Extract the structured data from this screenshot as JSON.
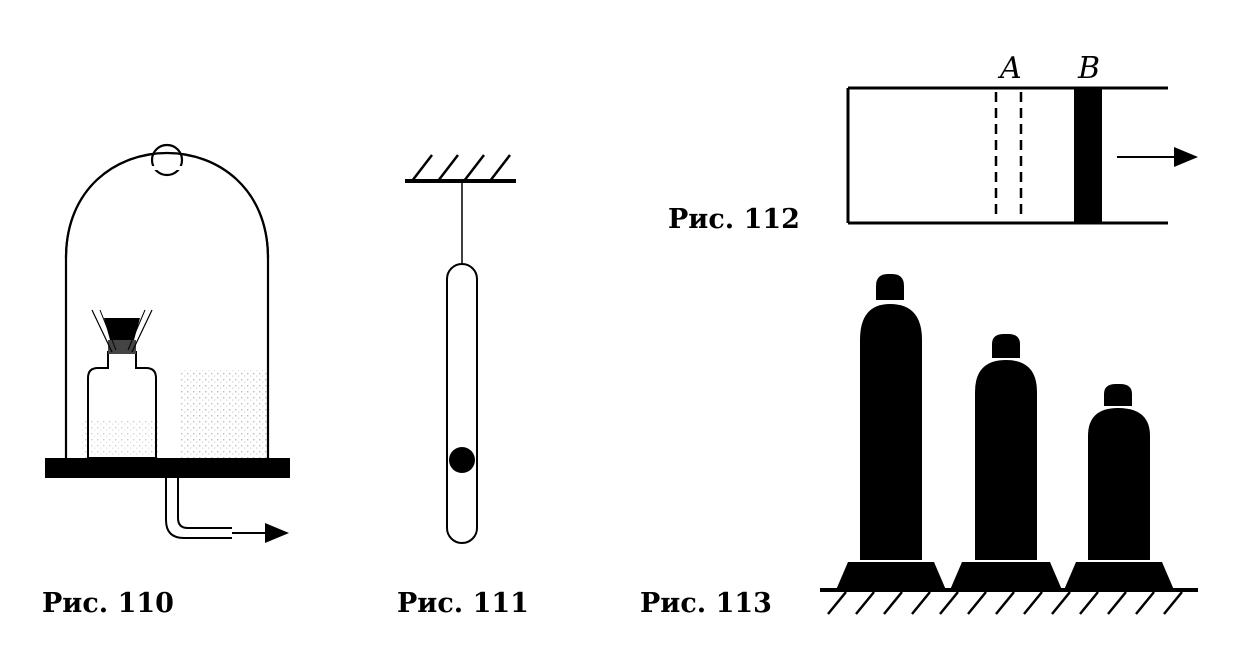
{
  "figures": {
    "fig110": {
      "caption": "Рис. 110"
    },
    "fig111": {
      "caption": "Рис. 111"
    },
    "fig112": {
      "caption": "Рис. 112",
      "label_a": "A",
      "label_b": "B"
    },
    "fig113": {
      "caption": "Рис. 113",
      "cylinder_count": 3
    }
  },
  "colors": {
    "ink": "#000000",
    "paper": "#ffffff",
    "stipple": "#c8c8c8"
  }
}
